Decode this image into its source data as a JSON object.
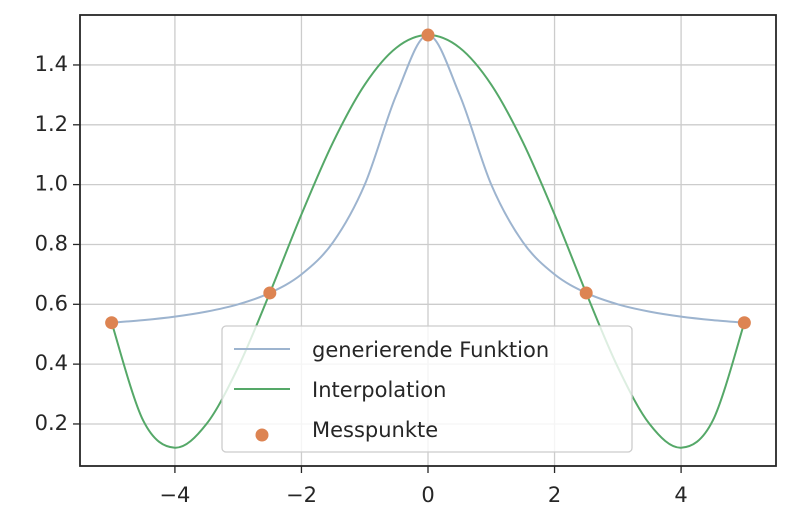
{
  "chart_data": {
    "type": "line",
    "xlim": [
      -5.5,
      5.5
    ],
    "ylim": [
      0.0595,
      1.567
    ],
    "xticks": [
      {
        "value": -4,
        "label": "−4"
      },
      {
        "value": -2,
        "label": "−2"
      },
      0,
      2,
      4
    ],
    "yticks": [
      0.2,
      0.4,
      0.6,
      0.8,
      {
        "value": 1.0,
        "label": "1.0"
      },
      1.2,
      1.4
    ],
    "grid": true,
    "legend": "lower center",
    "series": [
      {
        "name": "generierende Funktion",
        "color": "#9db4cf",
        "kind": "line",
        "x": [
          -5,
          -4.5,
          -4,
          -3.5,
          -3,
          -2.5,
          -2,
          -1.5,
          -1,
          -0.5,
          0,
          0.5,
          1,
          1.5,
          2,
          2.5,
          3,
          3.5,
          4,
          4.5,
          5
        ],
        "values": [
          0.5385,
          0.5471,
          0.5588,
          0.5755,
          0.6,
          0.6379,
          0.7,
          0.8077,
          1.0,
          1.3,
          1.5,
          1.3,
          1.0,
          0.8077,
          0.7,
          0.6379,
          0.6,
          0.5755,
          0.5588,
          0.5471,
          0.5385
        ]
      },
      {
        "name": "Interpolation",
        "color": "#55a868",
        "kind": "line",
        "x": [
          -5,
          -4.5,
          -4,
          -3.5,
          -3,
          -2.5,
          -2,
          -1.5,
          -1,
          -0.5,
          0,
          0.5,
          1,
          1.5,
          2,
          2.5,
          3,
          3.5,
          4,
          4.5,
          5
        ],
        "values": [
          0.5385,
          0.2109,
          0.1207,
          0.2003,
          0.3899,
          0.6379,
          0.9005,
          1.1419,
          1.3342,
          1.4576,
          1.5,
          1.4576,
          1.3342,
          1.1419,
          0.9005,
          0.6379,
          0.3899,
          0.2003,
          0.1207,
          0.2109,
          0.5385
        ]
      },
      {
        "name": "Messpunkte",
        "color": "#dd8452",
        "kind": "scatter",
        "x": [
          -5,
          -2.5,
          0,
          2.5,
          5
        ],
        "values": [
          0.5385,
          0.6379,
          1.5,
          0.6379,
          0.5385
        ]
      }
    ]
  }
}
